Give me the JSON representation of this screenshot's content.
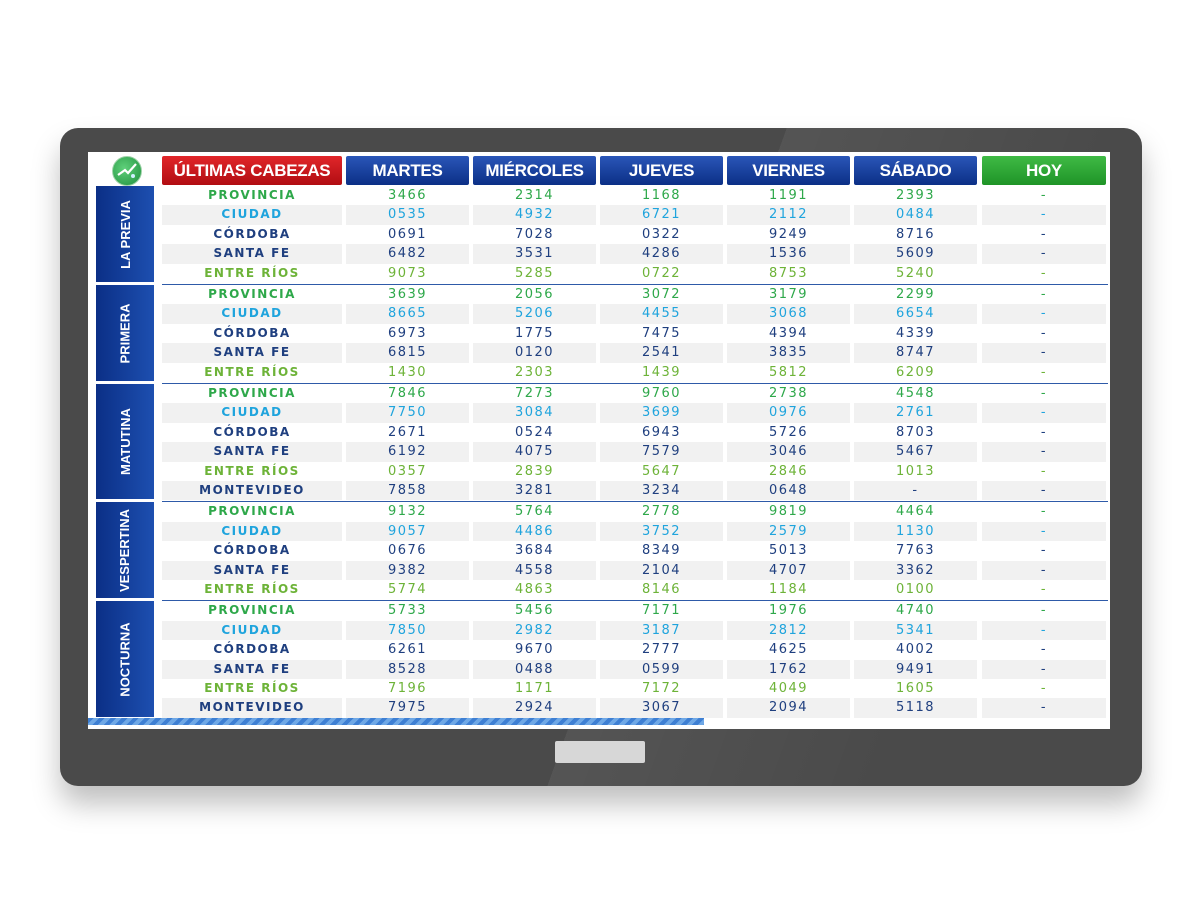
{
  "headers": {
    "first": "ÚLTIMAS CABEZAS",
    "days": [
      "MARTES",
      "MIÉRCOLES",
      "JUEVES",
      "VIERNES",
      "SÁBADO"
    ],
    "today": "HOY"
  },
  "colors": {
    "blue_header": "#0b2f86",
    "red_header": "#d2181d",
    "green_header": "#2ea836",
    "monitor": "#4a4a4a"
  },
  "sections": [
    {
      "name": "LA PREVIA",
      "rows": [
        {
          "city": "PROVINCIA",
          "values": [
            "3466",
            "2314",
            "1168",
            "1191",
            "2393"
          ],
          "today": "-"
        },
        {
          "city": "CIUDAD",
          "values": [
            "0535",
            "4932",
            "6721",
            "2112",
            "0484"
          ],
          "today": "-"
        },
        {
          "city": "CÓRDOBA",
          "values": [
            "0691",
            "7028",
            "0322",
            "9249",
            "8716"
          ],
          "today": "-"
        },
        {
          "city": "SANTA FE",
          "values": [
            "6482",
            "3531",
            "4286",
            "1536",
            "5609"
          ],
          "today": "-"
        },
        {
          "city": "ENTRE RÍOS",
          "values": [
            "9073",
            "5285",
            "0722",
            "8753",
            "5240"
          ],
          "today": "-"
        }
      ]
    },
    {
      "name": "PRIMERA",
      "rows": [
        {
          "city": "PROVINCIA",
          "values": [
            "3639",
            "2056",
            "3072",
            "3179",
            "2299"
          ],
          "today": "-"
        },
        {
          "city": "CIUDAD",
          "values": [
            "8665",
            "5206",
            "4455",
            "3068",
            "6654"
          ],
          "today": "-"
        },
        {
          "city": "CÓRDOBA",
          "values": [
            "6973",
            "1775",
            "7475",
            "4394",
            "4339"
          ],
          "today": "-"
        },
        {
          "city": "SANTA FE",
          "values": [
            "6815",
            "0120",
            "2541",
            "3835",
            "8747"
          ],
          "today": "-"
        },
        {
          "city": "ENTRE RÍOS",
          "values": [
            "1430",
            "2303",
            "1439",
            "5812",
            "6209"
          ],
          "today": "-"
        }
      ]
    },
    {
      "name": "MATUTINA",
      "rows": [
        {
          "city": "PROVINCIA",
          "values": [
            "7846",
            "7273",
            "9760",
            "2738",
            "4548"
          ],
          "today": "-"
        },
        {
          "city": "CIUDAD",
          "values": [
            "7750",
            "3084",
            "3699",
            "0976",
            "2761"
          ],
          "today": "-"
        },
        {
          "city": "CÓRDOBA",
          "values": [
            "2671",
            "0524",
            "6943",
            "5726",
            "8703"
          ],
          "today": "-"
        },
        {
          "city": "SANTA FE",
          "values": [
            "6192",
            "4075",
            "7579",
            "3046",
            "5467"
          ],
          "today": "-"
        },
        {
          "city": "ENTRE RÍOS",
          "values": [
            "0357",
            "2839",
            "5647",
            "2846",
            "1013"
          ],
          "today": "-"
        },
        {
          "city": "MONTEVIDEO",
          "values": [
            "7858",
            "3281",
            "3234",
            "0648",
            "-"
          ],
          "today": "-"
        }
      ]
    },
    {
      "name": "VESPERTINA",
      "rows": [
        {
          "city": "PROVINCIA",
          "values": [
            "9132",
            "5764",
            "2778",
            "9819",
            "4464"
          ],
          "today": "-"
        },
        {
          "city": "CIUDAD",
          "values": [
            "9057",
            "4486",
            "3752",
            "2579",
            "1130"
          ],
          "today": "-"
        },
        {
          "city": "CÓRDOBA",
          "values": [
            "0676",
            "3684",
            "8349",
            "5013",
            "7763"
          ],
          "today": "-"
        },
        {
          "city": "SANTA FE",
          "values": [
            "9382",
            "4558",
            "2104",
            "4707",
            "3362"
          ],
          "today": "-"
        },
        {
          "city": "ENTRE RÍOS",
          "values": [
            "5774",
            "4863",
            "8146",
            "1184",
            "0100"
          ],
          "today": "-"
        }
      ]
    },
    {
      "name": "NOCTURNA",
      "rows": [
        {
          "city": "PROVINCIA",
          "values": [
            "5733",
            "5456",
            "7171",
            "1976",
            "4740"
          ],
          "today": "-"
        },
        {
          "city": "CIUDAD",
          "values": [
            "7850",
            "2982",
            "3187",
            "2812",
            "5341"
          ],
          "today": "-"
        },
        {
          "city": "CÓRDOBA",
          "values": [
            "6261",
            "9670",
            "2777",
            "4625",
            "4002"
          ],
          "today": "-"
        },
        {
          "city": "SANTA FE",
          "values": [
            "8528",
            "0488",
            "0599",
            "1762",
            "9491"
          ],
          "today": "-"
        },
        {
          "city": "ENTRE RÍOS",
          "values": [
            "7196",
            "1171",
            "7172",
            "4049",
            "1605"
          ],
          "today": "-"
        },
        {
          "city": "MONTEVIDEO",
          "values": [
            "7975",
            "2924",
            "3067",
            "2094",
            "5118"
          ],
          "today": "-"
        }
      ]
    }
  ]
}
